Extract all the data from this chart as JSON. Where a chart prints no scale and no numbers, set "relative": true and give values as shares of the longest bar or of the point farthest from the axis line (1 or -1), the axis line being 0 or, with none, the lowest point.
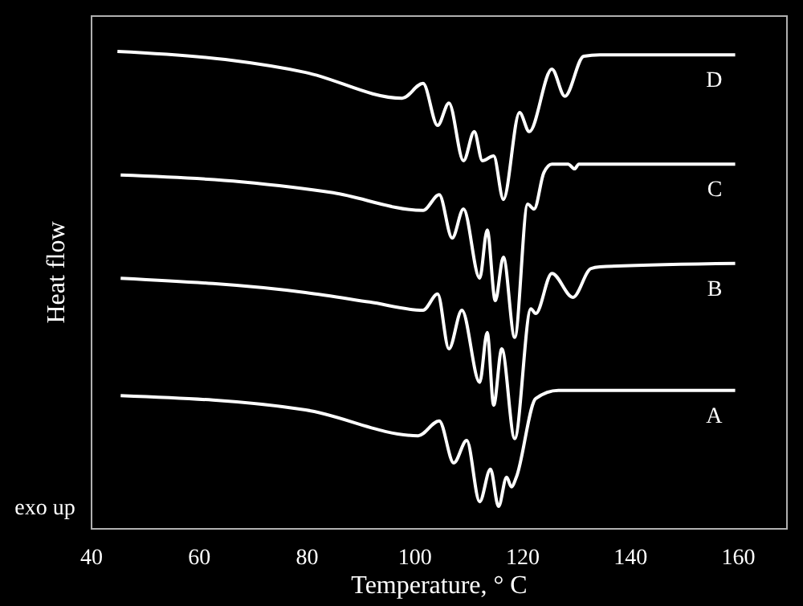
{
  "chart_data": {
    "type": "line",
    "relative": true,
    "xlabel": "Temperature, ° C",
    "ylabel": "Heat flow",
    "annotations": [
      "exo up"
    ],
    "xlim": [
      40,
      169
    ],
    "xticks": [
      40,
      60,
      80,
      100,
      120,
      140,
      160
    ],
    "grid": false,
    "marker": "none",
    "line_style": "solid",
    "series": [
      {
        "name": "D",
        "color": "#ffffff",
        "x": [
          44.8,
          64.8,
          79.7,
          97.6,
          101.5,
          104.2,
          106.3,
          109,
          111,
          112.5,
          114.6,
          116.4,
          119.4,
          121.2,
          125.4,
          127.8,
          131.3,
          134.3,
          159.4
        ],
        "values": [
          1.0,
          0.983,
          0.956,
          0.902,
          0.933,
          0.845,
          0.892,
          0.771,
          0.832,
          0.771,
          0.781,
          0.69,
          0.872,
          0.832,
          0.963,
          0.906,
          0.99,
          0.993,
          0.993
        ]
      },
      {
        "name": "C",
        "color": "#ffffff",
        "x": [
          45.4,
          67.8,
          84.8,
          101.5,
          104.5,
          106.9,
          109,
          112,
          113.4,
          114.9,
          116.4,
          118.5,
          120.9,
          122.1,
          123.9,
          125.4,
          128.4,
          129.6,
          130.4,
          159.4
        ],
        "values": [
          0.741,
          0.727,
          0.704,
          0.667,
          0.7,
          0.609,
          0.67,
          0.525,
          0.626,
          0.478,
          0.569,
          0.401,
          0.68,
          0.67,
          0.746,
          0.764,
          0.764,
          0.754,
          0.764,
          0.764
        ]
      },
      {
        "name": "B",
        "color": "#ffffff",
        "x": [
          45.4,
          79.7,
          91.6,
          101.5,
          104.2,
          106.3,
          108.7,
          112,
          113.4,
          114.6,
          116.1,
          118.5,
          121.5,
          122.4,
          125.4,
          129.3,
          132.6,
          134.3,
          159.4
        ],
        "values": [
          0.525,
          0.495,
          0.475,
          0.458,
          0.492,
          0.377,
          0.458,
          0.307,
          0.411,
          0.259,
          0.377,
          0.189,
          0.461,
          0.451,
          0.535,
          0.485,
          0.545,
          0.549,
          0.556
        ]
      },
      {
        "name": "A",
        "color": "#ffffff",
        "x": [
          45.4,
          79.7,
          100.6,
          104.5,
          107.2,
          109.6,
          112,
          114,
          115.5,
          117,
          117.9,
          118.8,
          122.4,
          126.6,
          159.4
        ],
        "values": [
          0.279,
          0.249,
          0.195,
          0.226,
          0.138,
          0.185,
          0.057,
          0.125,
          0.047,
          0.108,
          0.088,
          0.108,
          0.273,
          0.29,
          0.29
        ]
      }
    ]
  }
}
